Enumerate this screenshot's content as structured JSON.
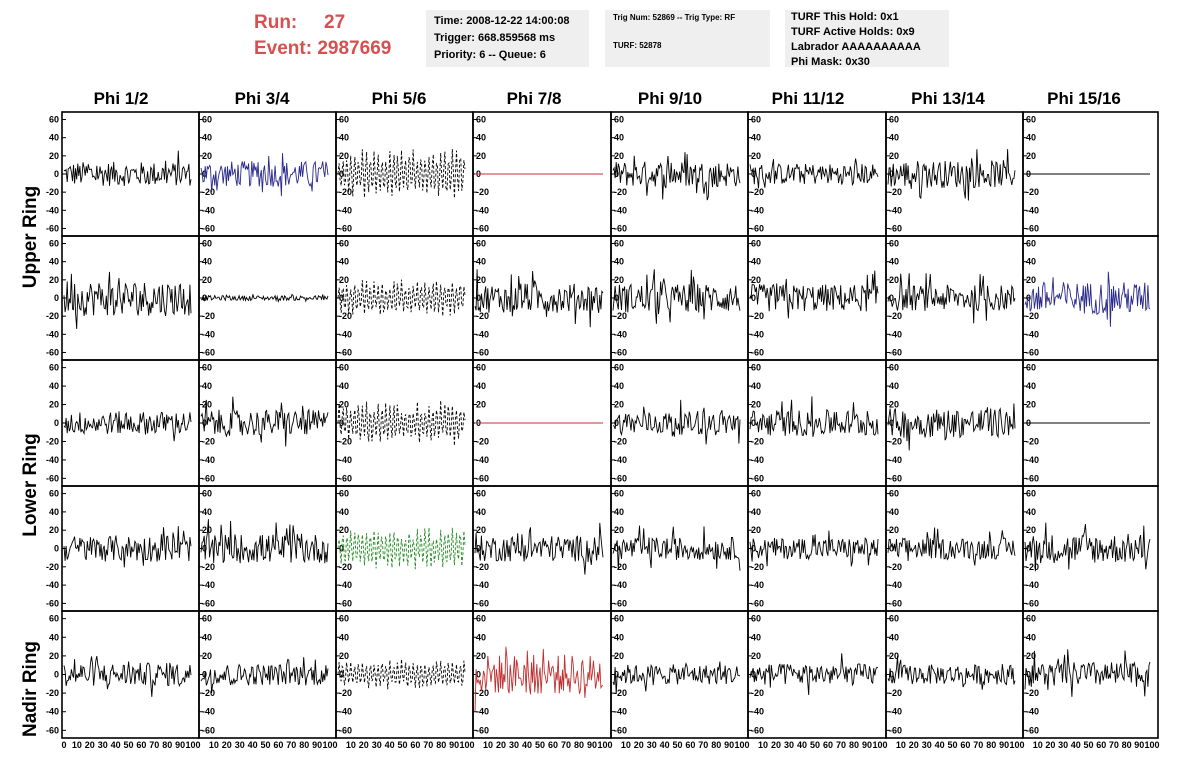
{
  "header": {
    "run_label": "Run:",
    "run_value": "27",
    "event_label": "Event:",
    "event_value": "2987669",
    "time": "Time: 2008-12-22 14:00:08",
    "trigger": "Trigger: 668.859568 ms",
    "priority": "Priority: 6 -- Queue: 6",
    "trig_num": "Trig Num: 52869 -- Trig Type: RF",
    "turf": "TURF: 52878",
    "turf_this_hold": "TURF This Hold: 0x1",
    "turf_active_holds": "TURF Active Holds: 0x9",
    "labrador": "Labrador AAAAAAAAAA",
    "phi_mask": "Phi Mask: 0x30",
    "accent_color": "#d65050"
  },
  "chart_data": {
    "type": "line",
    "title": "",
    "columns": [
      "Phi 1/2",
      "Phi 3/4",
      "Phi 5/6",
      "Phi 7/8",
      "Phi 9/10",
      "Phi 11/12",
      "Phi 13/14",
      "Phi 15/16"
    ],
    "row_labels": [
      "Upper Ring",
      "Lower Ring",
      "Nadir Ring"
    ],
    "ylim": [
      -65,
      65
    ],
    "xlim": [
      0,
      100
    ],
    "y_ticks": [
      "60",
      "40",
      "20",
      "0",
      "-20",
      "-40",
      "-60"
    ],
    "x_tick_labels_first": [
      "0",
      "10",
      "20",
      "30",
      "40",
      "50",
      "60",
      "70",
      "80",
      "90",
      "100"
    ],
    "x_tick_labels_other": [
      "10",
      "20",
      "30",
      "40",
      "50",
      "60",
      "70",
      "80",
      "90",
      "100"
    ],
    "grid": false,
    "colors": {
      "normal": "#000000",
      "blue": "#2a2a8c",
      "red": "#c03030",
      "green": "#1f8a1f"
    },
    "panels": [
      [
        {
          "color": "normal",
          "style": "solid",
          "amp": 15
        },
        {
          "color": "blue",
          "style": "solid",
          "amp": 16
        },
        {
          "color": "normal",
          "style": "dashed",
          "amp": 28
        },
        {
          "color": "red",
          "style": "flat",
          "amp": 0
        },
        {
          "color": "normal",
          "style": "solid",
          "amp": 16
        },
        {
          "color": "normal",
          "style": "solid",
          "amp": 13
        },
        {
          "color": "normal",
          "style": "solid",
          "amp": 17
        },
        {
          "color": "normal",
          "style": "flat",
          "amp": 0
        }
      ],
      [
        {
          "color": "normal",
          "style": "solid",
          "amp": 22
        },
        {
          "color": "normal",
          "style": "solid",
          "amp": 3
        },
        {
          "color": "normal",
          "style": "dashed",
          "amp": 22
        },
        {
          "color": "normal",
          "style": "solid",
          "amp": 18
        },
        {
          "color": "normal",
          "style": "solid",
          "amp": 18
        },
        {
          "color": "normal",
          "style": "solid",
          "amp": 17
        },
        {
          "color": "normal",
          "style": "solid",
          "amp": 16
        },
        {
          "color": "blue",
          "style": "solid",
          "amp": 20
        }
      ],
      [
        {
          "color": "normal",
          "style": "solid",
          "amp": 14
        },
        {
          "color": "normal",
          "style": "solid",
          "amp": 16
        },
        {
          "color": "normal",
          "style": "dashed",
          "amp": 25
        },
        {
          "color": "red",
          "style": "flat",
          "amp": 0
        },
        {
          "color": "normal",
          "style": "solid",
          "amp": 14
        },
        {
          "color": "normal",
          "style": "solid",
          "amp": 16
        },
        {
          "color": "normal",
          "style": "solid",
          "amp": 18
        },
        {
          "color": "normal",
          "style": "flat",
          "amp": 0
        }
      ],
      [
        {
          "color": "normal",
          "style": "solid",
          "amp": 16
        },
        {
          "color": "normal",
          "style": "solid",
          "amp": 18
        },
        {
          "color": "green",
          "style": "dashed",
          "amp": 24
        },
        {
          "color": "normal",
          "style": "solid",
          "amp": 16
        },
        {
          "color": "normal",
          "style": "solid",
          "amp": 14
        },
        {
          "color": "normal",
          "style": "solid",
          "amp": 13
        },
        {
          "color": "normal",
          "style": "solid",
          "amp": 13
        },
        {
          "color": "normal",
          "style": "solid",
          "amp": 18
        }
      ],
      [
        {
          "color": "normal",
          "style": "solid",
          "amp": 14
        },
        {
          "color": "normal",
          "style": "solid",
          "amp": 13
        },
        {
          "color": "normal",
          "style": "dashed",
          "amp": 18
        },
        {
          "color": "red",
          "style": "solid",
          "amp": 24
        },
        {
          "color": "normal",
          "style": "solid",
          "amp": 12
        },
        {
          "color": "normal",
          "style": "solid",
          "amp": 13
        },
        {
          "color": "normal",
          "style": "solid",
          "amp": 12
        },
        {
          "color": "normal",
          "style": "solid",
          "amp": 15
        }
      ]
    ]
  }
}
